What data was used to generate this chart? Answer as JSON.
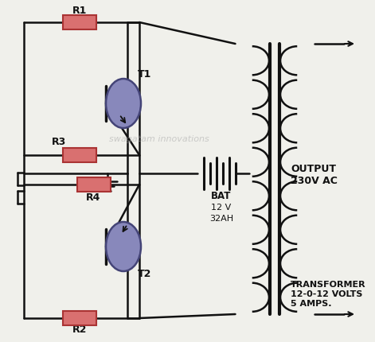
{
  "bg_color": "#f0f0eb",
  "wire_color": "#111111",
  "resistor_fill": "#d97070",
  "resistor_edge": "#aa3333",
  "transistor_fill": "#8888bb",
  "transistor_edge": "#444477",
  "text_color": "#111111",
  "watermark_text": "swagatam innovations",
  "label_R1": "R1",
  "label_R2": "R2",
  "label_R3": "R3",
  "label_R4": "R4",
  "label_T1": "T1",
  "label_T2": "T2",
  "label_BAT": "BAT",
  "label_bat_spec": "12 V\n32AH",
  "label_output": "OUTPUT\n230V AC",
  "label_transformer": "TRANSFORMER\n12-0-12 VOLTS\n5 AMPS."
}
